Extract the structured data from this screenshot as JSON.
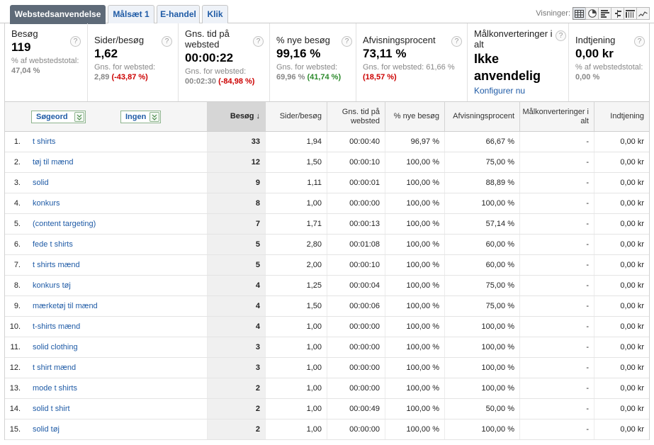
{
  "tabs": [
    {
      "label": "Webstedsanvendelse",
      "active": true
    },
    {
      "label": "Målsæt 1",
      "active": false
    },
    {
      "label": "E-handel",
      "active": false
    },
    {
      "label": "Klik",
      "active": false
    }
  ],
  "views": {
    "label": "Visninger:",
    "buttons": [
      "table-view-icon",
      "pie-view-icon",
      "bar-view-icon",
      "comparison-view-icon",
      "pivot-view-icon",
      "trend-view-icon"
    ]
  },
  "metrics": [
    {
      "title": "Besøg",
      "value": "119",
      "sub1": "% af webstedstotal:",
      "sub2": "47,04 %"
    },
    {
      "title": "Sider/besøg",
      "value": "1,62",
      "sub1": "Gns. for websted:",
      "sub2_avg": "2,89",
      "sub2_change": "(-43,87 %)"
    },
    {
      "title": "Gns. tid på websted",
      "value": "00:00:22",
      "sub1": "Gns. for websted:",
      "sub2_avg": "00:02:30",
      "sub2_change": "(-84,98 %)"
    },
    {
      "title": "% nye besøg",
      "value": "99,16 %",
      "sub1": "Gns. for websted:",
      "sub2_avg": "69,96 %",
      "sub2_change": "(41,74 %)"
    },
    {
      "title": "Afvisningsprocent",
      "value": "73,11 %",
      "sub1": "Gns. for websted: 61,66 %",
      "sub2_change": "(18,57 %)"
    },
    {
      "title": "Målkonverteringer i alt",
      "value": "Ikke anvendelig",
      "link": "Konfigurer nu"
    },
    {
      "title": "Indtjening",
      "value": "0,00 kr",
      "sub1": "% af webstedstotal:",
      "sub2": "0,00 %"
    }
  ],
  "help_glyph": "?",
  "table": {
    "dim1": "Søgeord",
    "dim2": "Ingen",
    "sort_arrow": "↓",
    "headers": [
      "Besøg",
      "Sider/besøg",
      "Gns. tid på websted",
      "% nye besøg",
      "Afvisningsprocent",
      "Målkonverteringer i alt",
      "Indtjening"
    ],
    "rows": [
      {
        "n": "1.",
        "kw": "t shirts",
        "v": [
          "33",
          "1,94",
          "00:00:40",
          "96,97 %",
          "66,67 %",
          "-",
          "0,00 kr"
        ]
      },
      {
        "n": "2.",
        "kw": "tøj til mænd",
        "v": [
          "12",
          "1,50",
          "00:00:10",
          "100,00 %",
          "75,00 %",
          "-",
          "0,00 kr"
        ]
      },
      {
        "n": "3.",
        "kw": "solid",
        "v": [
          "9",
          "1,11",
          "00:00:01",
          "100,00 %",
          "88,89 %",
          "-",
          "0,00 kr"
        ]
      },
      {
        "n": "4.",
        "kw": "konkurs",
        "v": [
          "8",
          "1,00",
          "00:00:00",
          "100,00 %",
          "100,00 %",
          "-",
          "0,00 kr"
        ]
      },
      {
        "n": "5.",
        "kw": "(content targeting)",
        "v": [
          "7",
          "1,71",
          "00:00:13",
          "100,00 %",
          "57,14 %",
          "-",
          "0,00 kr"
        ]
      },
      {
        "n": "6.",
        "kw": "fede t shirts",
        "v": [
          "5",
          "2,80",
          "00:01:08",
          "100,00 %",
          "60,00 %",
          "-",
          "0,00 kr"
        ]
      },
      {
        "n": "7.",
        "kw": "t shirts mænd",
        "v": [
          "5",
          "2,00",
          "00:00:10",
          "100,00 %",
          "60,00 %",
          "-",
          "0,00 kr"
        ]
      },
      {
        "n": "8.",
        "kw": "konkurs tøj",
        "v": [
          "4",
          "1,25",
          "00:00:04",
          "100,00 %",
          "75,00 %",
          "-",
          "0,00 kr"
        ]
      },
      {
        "n": "9.",
        "kw": "mærketøj til mænd",
        "v": [
          "4",
          "1,50",
          "00:00:06",
          "100,00 %",
          "75,00 %",
          "-",
          "0,00 kr"
        ]
      },
      {
        "n": "10.",
        "kw": "t-shirts mænd",
        "v": [
          "4",
          "1,00",
          "00:00:00",
          "100,00 %",
          "100,00 %",
          "-",
          "0,00 kr"
        ]
      },
      {
        "n": "11.",
        "kw": "solid clothing",
        "v": [
          "3",
          "1,00",
          "00:00:00",
          "100,00 %",
          "100,00 %",
          "-",
          "0,00 kr"
        ]
      },
      {
        "n": "12.",
        "kw": "t shirt mænd",
        "v": [
          "3",
          "1,00",
          "00:00:00",
          "100,00 %",
          "100,00 %",
          "-",
          "0,00 kr"
        ]
      },
      {
        "n": "13.",
        "kw": "mode t shirts",
        "v": [
          "2",
          "1,00",
          "00:00:00",
          "100,00 %",
          "100,00 %",
          "-",
          "0,00 kr"
        ]
      },
      {
        "n": "14.",
        "kw": "solid t shirt",
        "v": [
          "2",
          "1,00",
          "00:00:49",
          "100,00 %",
          "50,00 %",
          "-",
          "0,00 kr"
        ]
      },
      {
        "n": "15.",
        "kw": "solid tøj",
        "v": [
          "2",
          "1,00",
          "00:00:00",
          "100,00 %",
          "100,00 %",
          "-",
          "0,00 kr"
        ]
      }
    ]
  }
}
